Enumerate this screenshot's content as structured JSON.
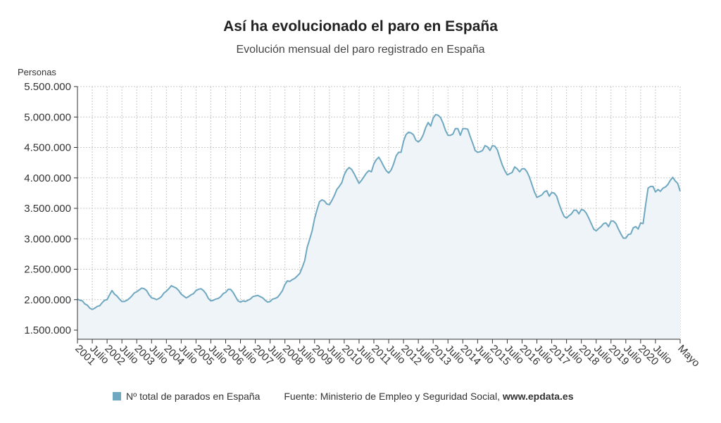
{
  "header": {
    "title": "Así ha evolucionado el paro en España",
    "subtitle": "Evolución mensual del paro registrado en España"
  },
  "footer": {
    "legend_label": "Nº total de parados en España",
    "source_text": "Fuente: Ministerio de Empleo y Seguridad Social,",
    "source_site": "www.epdata.es"
  },
  "colors": {
    "line": "#6fa8c0",
    "area": "#eef4f8",
    "grid": "#c8c8c8",
    "axis": "#333333"
  },
  "chart_data": {
    "type": "area",
    "title": "Así ha evolucionado el paro en España",
    "subtitle": "Evolución mensual del paro registrado en España",
    "ylabel": "Personas",
    "xlabel": "",
    "ylim": [
      1350000,
      5500000
    ],
    "yticks": [
      1500000,
      2000000,
      2500000,
      3000000,
      3500000,
      4000000,
      4500000,
      5000000,
      5500000
    ],
    "ytick_labels": [
      "1.500.000",
      "2.000.000",
      "2.500.000",
      "3.000.000",
      "3.500.000",
      "4.000.000",
      "4.500.000",
      "5.000.000",
      "5.500.000"
    ],
    "x_start": "2001-01",
    "x_end": "2021-05",
    "xtick_labels": [
      "2001",
      "Julio",
      "2002",
      "Julio",
      "2003",
      "Julio",
      "2004",
      "Julio",
      "2005",
      "Julio",
      "2006",
      "Julio",
      "2007",
      "Julio",
      "2008",
      "Julio",
      "2009",
      "Julio",
      "2010",
      "Julio",
      "2011",
      "Julio",
      "2012",
      "Julio",
      "2013",
      "Julio",
      "2014",
      "Julio",
      "2015",
      "Julio",
      "2016",
      "Julio",
      "2017",
      "Julio",
      "2018",
      "Julio",
      "2019",
      "Julio",
      "2020",
      "Julio",
      "Mayo"
    ],
    "grid": true,
    "legend_position": "bottom",
    "series": [
      {
        "name": "Nº total de parados en España",
        "values": [
          2010000,
          1990000,
          1980000,
          1930000,
          1910000,
          1860000,
          1840000,
          1860000,
          1890000,
          1900000,
          1950000,
          1990000,
          2000000,
          2080000,
          2150000,
          2090000,
          2060000,
          2010000,
          1970000,
          1970000,
          1990000,
          2020000,
          2060000,
          2110000,
          2130000,
          2160000,
          2190000,
          2180000,
          2150000,
          2080000,
          2030000,
          2020000,
          2000000,
          2020000,
          2050000,
          2110000,
          2140000,
          2180000,
          2230000,
          2210000,
          2190000,
          2150000,
          2090000,
          2060000,
          2030000,
          2050000,
          2080000,
          2100000,
          2150000,
          2170000,
          2180000,
          2150000,
          2100000,
          2020000,
          1980000,
          1990000,
          2010000,
          2020000,
          2050000,
          2100000,
          2120000,
          2170000,
          2170000,
          2120000,
          2050000,
          1980000,
          1960000,
          1980000,
          1970000,
          1990000,
          2010000,
          2050000,
          2060000,
          2070000,
          2050000,
          2030000,
          1990000,
          1960000,
          1970000,
          2010000,
          2020000,
          2040000,
          2090000,
          2150000,
          2250000,
          2310000,
          2300000,
          2330000,
          2350000,
          2390000,
          2430000,
          2530000,
          2640000,
          2860000,
          2990000,
          3130000,
          3330000,
          3480000,
          3610000,
          3640000,
          3620000,
          3570000,
          3560000,
          3630000,
          3710000,
          3810000,
          3860000,
          3920000,
          4050000,
          4130000,
          4170000,
          4140000,
          4070000,
          3990000,
          3910000,
          3960000,
          4020000,
          4080000,
          4120000,
          4100000,
          4230000,
          4300000,
          4340000,
          4270000,
          4190000,
          4120000,
          4080000,
          4130000,
          4230000,
          4360000,
          4420000,
          4420000,
          4600000,
          4710000,
          4750000,
          4740000,
          4710000,
          4620000,
          4590000,
          4630000,
          4710000,
          4830000,
          4910000,
          4850000,
          4980000,
          5040000,
          5030000,
          4990000,
          4900000,
          4780000,
          4700000,
          4700000,
          4720000,
          4810000,
          4810000,
          4700000,
          4810000,
          4810000,
          4800000,
          4680000,
          4570000,
          4450000,
          4420000,
          4430000,
          4450000,
          4530000,
          4510000,
          4450000,
          4530000,
          4520000,
          4460000,
          4330000,
          4210000,
          4120000,
          4050000,
          4070000,
          4090000,
          4180000,
          4150000,
          4100000,
          4150000,
          4150000,
          4100000,
          4010000,
          3890000,
          3770000,
          3680000,
          3700000,
          3720000,
          3770000,
          3790000,
          3700000,
          3760000,
          3750000,
          3700000,
          3570000,
          3460000,
          3370000,
          3340000,
          3380000,
          3410000,
          3470000,
          3470000,
          3410000,
          3480000,
          3470000,
          3420000,
          3340000,
          3250000,
          3160000,
          3130000,
          3170000,
          3200000,
          3250000,
          3260000,
          3200000,
          3290000,
          3290000,
          3250000,
          3160000,
          3080000,
          3010000,
          3010000,
          3070000,
          3080000,
          3180000,
          3200000,
          3160000,
          3260000,
          3250000,
          3550000,
          3830000,
          3860000,
          3860000,
          3770000,
          3810000,
          3780000,
          3830000,
          3850000,
          3890000,
          3960000,
          4010000,
          3950000,
          3910000,
          3780000
        ]
      }
    ]
  }
}
